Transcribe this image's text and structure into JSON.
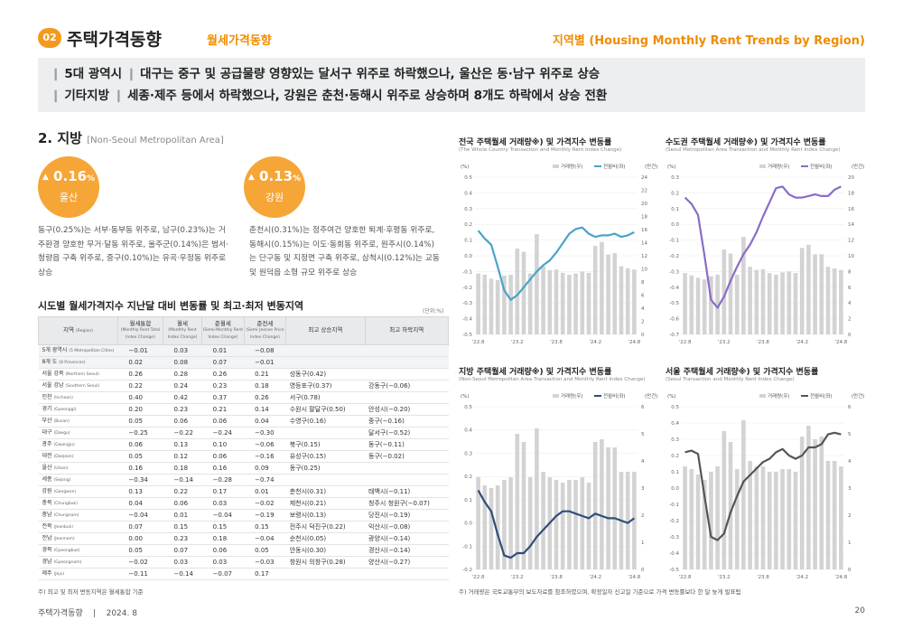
{
  "header": {
    "section_num": "02",
    "section_title": "주택가격동향",
    "section_sub": "월세가격동향",
    "right_title": "지역별 (Housing Monthly Rent Trends by Region)"
  },
  "summary": {
    "line1_label": "5대 광역시",
    "line1_text": "대구는 중구 및 공급물량 영향있는 달서구 위주로 하락했으나, 울산은 동·남구 위주로 상승",
    "line2_label": "기타지방",
    "line2_text": "세종·제주 등에서 하락했으나, 강원은 춘천·동해시 위주로 상승하며 8개도 하락에서 상승 전환"
  },
  "section2": {
    "title": "2. 지방",
    "subtitle": "[Non-Seoul Metropolitan Area]"
  },
  "highlights": [
    {
      "arrow": "▲",
      "value": "0.16",
      "unit": "%",
      "region": "울산",
      "desc": "동구(0.25%)는 서부·동부동 위주로, 남구(0.23%)는 거주환경 양호한 무거·달동 위주로, 울주군(0.14%)은 범서·청량읍 구축 위주로, 중구(0.10%)는 유곡·우정동 위주로 상승"
    },
    {
      "arrow": "▲",
      "value": "0.13",
      "unit": "%",
      "region": "강원",
      "desc": "춘천시(0.31%)는 정주여건 양호한 퇴계·후평동 위주로, 동해시(0.15%)는 이도·동회동 위주로, 원주시(0.14%)는 단구동 및 지정면 구축 위주로, 삼척시(0.12%)는 교동 및 원덕읍 소형 규모 위주로 상승"
    }
  ],
  "table": {
    "title": "시도별 월세가격지수 지난달 대비 변동률 및 최고·최저 변동지역",
    "unit": "(단위:%)",
    "headers": {
      "region": "지역",
      "region_en": "(Region)",
      "c1": "월세통합",
      "c1_en": "(Monthly Rent Total Index Change)",
      "c2": "월세",
      "c2_en": "(Monthly Rent Index Change)",
      "c3": "준월세",
      "c3_en": "(Semi-Monthly Rent Index Change)",
      "c4": "준전세",
      "c4_en": "(Semi-Jeonse Price Index Change)",
      "c5": "최고 상승지역",
      "c6": "최고 하락지역"
    },
    "rows": [
      {
        "region": "5개 광역시",
        "region_en": "(5 Metropolitan Cities)",
        "v": [
          "−0.01",
          "0.03",
          "0.01",
          "−0.08"
        ],
        "up": "",
        "down": "",
        "grp": true
      },
      {
        "region": "8개 도",
        "region_en": "(8 Provinces)",
        "v": [
          "0.02",
          "0.08",
          "0.07",
          "−0.01"
        ],
        "up": "",
        "down": "",
        "grp": true
      },
      {
        "region": "서울 강북",
        "region_en": "(Northern Seoul)",
        "v": [
          "0.26",
          "0.28",
          "0.26",
          "0.21"
        ],
        "up": "성동구(0.42)",
        "down": ""
      },
      {
        "region": "서울 강남",
        "region_en": "(Southern Seoul)",
        "v": [
          "0.22",
          "0.24",
          "0.23",
          "0.18"
        ],
        "up": "영등포구(0.37)",
        "down": "강동구(−0.06)"
      },
      {
        "region": "인천",
        "region_en": "(Incheon)",
        "v": [
          "0.40",
          "0.42",
          "0.37",
          "0.26"
        ],
        "up": "서구(0.78)",
        "down": ""
      },
      {
        "region": "경기",
        "region_en": "(Gyeonggi)",
        "v": [
          "0.20",
          "0.23",
          "0.21",
          "0.14"
        ],
        "up": "수원시 팔달구(0.50)",
        "down": "안성시(−0.20)"
      },
      {
        "region": "부산",
        "region_en": "(Busan)",
        "v": [
          "0.05",
          "0.06",
          "0.06",
          "0.04"
        ],
        "up": "수영구(0.16)",
        "down": "중구(−0.16)"
      },
      {
        "region": "대구",
        "region_en": "(Daegu)",
        "v": [
          "−0.25",
          "−0.22",
          "−0.24",
          "−0.30"
        ],
        "up": "",
        "down": "달서구(−0.52)"
      },
      {
        "region": "광주",
        "region_en": "(Gwangju)",
        "v": [
          "0.06",
          "0.13",
          "0.10",
          "−0.06"
        ],
        "up": "북구(0.15)",
        "down": "동구(−0.11)"
      },
      {
        "region": "대전",
        "region_en": "(Daejeon)",
        "v": [
          "0.05",
          "0.12",
          "0.06",
          "−0.16"
        ],
        "up": "유성구(0.15)",
        "down": "동구(−0.02)"
      },
      {
        "region": "울산",
        "region_en": "(Ulsan)",
        "v": [
          "0.16",
          "0.18",
          "0.16",
          "0.09"
        ],
        "up": "동구(0.25)",
        "down": ""
      },
      {
        "region": "세종",
        "region_en": "(Sejong)",
        "v": [
          "−0.34",
          "−0.14",
          "−0.28",
          "−0.74"
        ],
        "up": "",
        "down": ""
      },
      {
        "region": "강원",
        "region_en": "(Gangwon)",
        "v": [
          "0.13",
          "0.22",
          "0.17",
          "0.01"
        ],
        "up": "춘천시(0.31)",
        "down": "태백시(−0.11)"
      },
      {
        "region": "충북",
        "region_en": "(Chungbuk)",
        "v": [
          "0.04",
          "0.06",
          "0.03",
          "−0.02"
        ],
        "up": "제천시(0.21)",
        "down": "청주시 청원구(−0.07)"
      },
      {
        "region": "충남",
        "region_en": "(Chungnam)",
        "v": [
          "−0.04",
          "0.01",
          "−0.04",
          "−0.19"
        ],
        "up": "보령시(0.13)",
        "down": "당진시(−0.19)"
      },
      {
        "region": "전북",
        "region_en": "(Jeonbuk)",
        "v": [
          "0.07",
          "0.15",
          "0.15",
          "0.15"
        ],
        "up": "전주시 덕진구(0.22)",
        "down": "익산시(−0.08)"
      },
      {
        "region": "전남",
        "region_en": "(Jeonnam)",
        "v": [
          "0.00",
          "0.23",
          "0.18",
          "−0.04"
        ],
        "up": "순천시(0.05)",
        "down": "광양시(−0.14)"
      },
      {
        "region": "경북",
        "region_en": "(Gyeongbuk)",
        "v": [
          "0.05",
          "0.07",
          "0.06",
          "0.05"
        ],
        "up": "안동시(0.30)",
        "down": "경산시(−0.14)"
      },
      {
        "region": "경남",
        "region_en": "(Gyeongnam)",
        "v": [
          "−0.02",
          "0.03",
          "0.03",
          "−0.03"
        ],
        "up": "창원시 의창구(0.28)",
        "down": "양산시(−0.27)"
      },
      {
        "region": "제주",
        "region_en": "(Jeju)",
        "v": [
          "−0.11",
          "−0.14",
          "−0.07",
          "0.17"
        ],
        "up": "",
        "down": ""
      }
    ]
  },
  "notes": {
    "left": "주) 최고 및 최저 변동지역은 월세통합 기준",
    "right": "주) 거래량은 국토교통부의 보도자료를 참조하였으며, 확정일자 신고일 기준으로 가격 변동률보다 한 달 늦게 발표됨"
  },
  "footer": {
    "left": "주택가격동향    |    2024. 8",
    "page": "20"
  },
  "colors": {
    "orange": "#f39a1e",
    "bar": "#d3d3d3",
    "line_national": "#4aa3c9",
    "line_capital": "#8a6cc9",
    "line_nonseoul": "#2f4e7a",
    "line_seoul": "#555555"
  },
  "chart_data": [
    {
      "type": "bar+line",
      "title": "전국 주택월세 거래량※) 및 가격지수 변동률",
      "subtitle": "(The Whole Country Transaction and Monthly Rent Index Change)",
      "left_unit": "(%)",
      "right_unit": "(만건)",
      "legend": [
        "거래량(우)",
        "전월비(좌)"
      ],
      "x_ticks": [
        "'22.8",
        "'23.2",
        "'23.8",
        "'24.2",
        "'24.8"
      ],
      "ylim": [
        -0.5,
        0.5
      ],
      "yticks": [
        "0.5",
        "0.4",
        "0.3",
        "0.2",
        "0.1",
        "0.0",
        "-0.1",
        "-0.2",
        "-0.3",
        "-0.4",
        "-0.5"
      ],
      "y2lim": [
        0,
        24
      ],
      "y2ticks": [
        "24",
        "22",
        "20",
        "18",
        "16",
        "14",
        "12",
        "10",
        "8",
        "6",
        "4",
        "2",
        "0"
      ],
      "line_color": "#4aa3c9",
      "bars": [
        9.3,
        9.1,
        8.5,
        8.3,
        9.0,
        9.1,
        13.1,
        12.6,
        9.3,
        15.3,
        10.4,
        9.8,
        9.9,
        9.4,
        9.1,
        9.3,
        9.6,
        9.4,
        13.5,
        14.1,
        12.2,
        12.4,
        10.4,
        10.1,
        9.9
      ],
      "line": [
        0.16,
        0.11,
        0.07,
        -0.07,
        -0.22,
        -0.28,
        -0.25,
        -0.2,
        -0.15,
        -0.1,
        -0.06,
        -0.03,
        0.02,
        0.08,
        0.14,
        0.17,
        0.18,
        0.14,
        0.12,
        0.13,
        0.13,
        0.14,
        0.12,
        0.13,
        0.15
      ]
    },
    {
      "type": "bar+line",
      "title": "수도권 주택월세 거래량※) 및 가격지수 변동률",
      "subtitle": "(Seoul Metropolitan Area Transaction and Monthly Rent Index Change)",
      "left_unit": "(%)",
      "right_unit": "(만건)",
      "legend": [
        "거래량(우)",
        "전월비(좌)"
      ],
      "x_ticks": [
        "'22.8",
        "'23.2",
        "'23.8",
        "'24.2",
        "'24.8"
      ],
      "ylim": [
        -0.7,
        0.3
      ],
      "yticks": [
        "0.3",
        "0.2",
        "0.1",
        "0.0",
        "-0.1",
        "-0.2",
        "-0.3",
        "-0.4",
        "-0.5",
        "-0.6",
        "-0.7"
      ],
      "y2lim": [
        0,
        20
      ],
      "y2ticks": [
        "20",
        "18",
        "16",
        "14",
        "12",
        "10",
        "8",
        "6",
        "4",
        "2",
        "0"
      ],
      "line_color": "#8a6cc9",
      "bars": [
        7.8,
        7.5,
        7.2,
        7.0,
        7.4,
        7.6,
        10.8,
        10.3,
        7.6,
        12.4,
        8.6,
        8.2,
        8.3,
        7.8,
        7.6,
        7.9,
        8.0,
        7.8,
        11.0,
        11.4,
        10.2,
        10.2,
        8.6,
        8.4,
        8.2
      ],
      "line": [
        0.17,
        0.13,
        0.06,
        -0.2,
        -0.48,
        -0.53,
        -0.46,
        -0.36,
        -0.27,
        -0.19,
        -0.13,
        -0.05,
        0.05,
        0.14,
        0.23,
        0.24,
        0.19,
        0.17,
        0.17,
        0.18,
        0.19,
        0.18,
        0.18,
        0.22,
        0.24
      ]
    },
    {
      "type": "bar+line",
      "title": "지방 주택월세 거래량※) 및 가격지수 변동률",
      "subtitle": "(Non-Seoul Metropolitan Area Transaction and Monthly Rent Index Change)",
      "left_unit": "(%)",
      "right_unit": "(만건)",
      "legend": [
        "거래량(우)",
        "전월비(좌)"
      ],
      "x_ticks": [
        "'22.8",
        "'23.2",
        "'23.8",
        "'24.2",
        "'24.8"
      ],
      "ylim": [
        -0.2,
        0.5
      ],
      "yticks": [
        "0.5",
        "0.4",
        "0.3",
        "0.2",
        "0.1",
        "0.0",
        "-0.1",
        "-0.2"
      ],
      "y2lim": [
        0,
        6
      ],
      "y2ticks": [
        "6",
        "5",
        "4",
        "3",
        "2",
        "1",
        "0"
      ],
      "line_color": "#2f4e7a",
      "bars": [
        3.4,
        3.1,
        3.0,
        3.1,
        3.3,
        3.4,
        5.0,
        4.7,
        3.4,
        5.2,
        3.6,
        3.4,
        3.3,
        3.2,
        3.3,
        3.3,
        3.4,
        3.2,
        4.7,
        4.8,
        4.5,
        4.5,
        3.6,
        3.6,
        3.6
      ],
      "line": [
        0.14,
        0.09,
        0.05,
        -0.05,
        -0.14,
        -0.15,
        -0.13,
        -0.13,
        -0.1,
        -0.06,
        -0.03,
        0.0,
        0.03,
        0.05,
        0.05,
        0.04,
        0.03,
        0.02,
        0.04,
        0.03,
        0.02,
        0.02,
        0.01,
        0.0,
        0.02
      ]
    },
    {
      "type": "bar+line",
      "title": "서울 주택월세 거래량※) 및 가격지수 변동률",
      "subtitle": "(Seoul Transaction and Monthly Rent Index Change)",
      "left_unit": "(%)",
      "right_unit": "(만건)",
      "legend": [
        "거래량(우)",
        "전월비(좌)"
      ],
      "x_ticks": [
        "'22.8",
        "'23.2",
        "'23.8",
        "'24.2",
        "'24.8"
      ],
      "ylim": [
        -0.5,
        0.5
      ],
      "yticks": [
        "0.5",
        "0.4",
        "0.3",
        "0.2",
        "0.1",
        "0.0",
        "-0.1",
        "-0.2",
        "-0.3",
        "-0.4",
        "-0.5"
      ],
      "y2lim": [
        0,
        6
      ],
      "y2ticks": [
        "6",
        "5",
        "4",
        "3",
        "2",
        "1",
        "0"
      ],
      "line_color": "#555555",
      "bars": [
        3.8,
        3.7,
        3.5,
        3.3,
        3.6,
        3.8,
        5.1,
        4.7,
        3.7,
        5.5,
        4.0,
        3.8,
        3.8,
        3.6,
        3.6,
        3.7,
        3.7,
        3.6,
        4.9,
        5.3,
        4.8,
        4.9,
        4.0,
        4.0,
        3.8
      ],
      "line": [
        0.22,
        0.23,
        0.21,
        -0.05,
        -0.3,
        -0.32,
        -0.28,
        -0.15,
        -0.05,
        0.04,
        0.08,
        0.12,
        0.16,
        0.18,
        0.22,
        0.24,
        0.2,
        0.18,
        0.2,
        0.25,
        0.25,
        0.27,
        0.33,
        0.34,
        0.33
      ]
    }
  ]
}
